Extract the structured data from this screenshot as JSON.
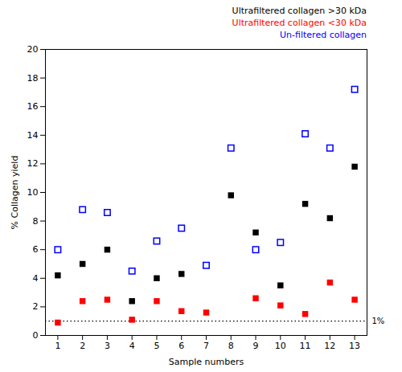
{
  "chart_data": {
    "type": "scatter",
    "xlabel": "Sample numbers",
    "ylabel": "% Collagen yield",
    "x": [
      1,
      2,
      3,
      4,
      5,
      6,
      7,
      8,
      9,
      10,
      11,
      12,
      13
    ],
    "series": [
      {
        "name": "Ultrafiltered collagen >30 kDa",
        "color": "#000000",
        "marker": "square",
        "values": [
          4.2,
          5.0,
          6.0,
          2.4,
          4.0,
          4.3,
          null,
          9.8,
          7.2,
          3.5,
          9.2,
          8.2,
          11.8
        ]
      },
      {
        "name": "Ultrafiltered collagen <30 kDa",
        "color": "#ff0000",
        "marker": "square",
        "values": [
          0.9,
          2.4,
          2.5,
          1.1,
          2.4,
          1.7,
          1.6,
          null,
          2.6,
          2.1,
          1.5,
          3.7,
          2.5
        ]
      },
      {
        "name": "Un-filtered collagen",
        "color": "#0000ff",
        "marker": "square-open",
        "values": [
          6.0,
          8.8,
          8.6,
          4.5,
          6.6,
          7.5,
          4.9,
          13.1,
          6.0,
          6.5,
          14.1,
          13.1,
          17.2
        ]
      }
    ],
    "hlines": [
      {
        "y": 1.0,
        "label": "1%",
        "line_style": "dotted",
        "color": "#000000"
      }
    ],
    "xlim": [
      0.5,
      13.5
    ],
    "ylim": [
      0,
      20
    ],
    "xticks": [
      1,
      2,
      3,
      4,
      5,
      6,
      7,
      8,
      9,
      10,
      11,
      12,
      13
    ],
    "yticks": [
      0,
      2,
      4,
      6,
      8,
      10,
      12,
      14,
      16,
      18,
      20
    ],
    "legend": "top-right",
    "grid": false
  }
}
